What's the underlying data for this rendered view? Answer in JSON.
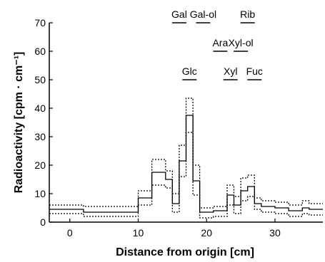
{
  "chart_data": {
    "type": "line",
    "xlabel": "Distance from origin [cm]",
    "ylabel": "Radioactivity [cpm · cm⁻¹]",
    "xlim": [
      -3,
      37
    ],
    "ylim": [
      0,
      70
    ],
    "xticks": [
      0,
      10,
      20,
      30
    ],
    "yticks": [
      0,
      10,
      20,
      30,
      40,
      50,
      60,
      70
    ],
    "grid": false,
    "series": [
      {
        "style": "solid",
        "x": [
          -3,
          2,
          2,
          10,
          10,
          12,
          12,
          14,
          14,
          15,
          15,
          16,
          16,
          17,
          17,
          18,
          18,
          19,
          19,
          21,
          21,
          23,
          23,
          24,
          24,
          25,
          25,
          26,
          26,
          27,
          27,
          28,
          28,
          30,
          30,
          32,
          32,
          34,
          34,
          35,
          35,
          37
        ],
        "y": [
          4.5,
          4.5,
          3.5,
          3.5,
          8.5,
          8.5,
          17.5,
          17.5,
          15.0,
          15.0,
          6.5,
          6.5,
          21.5,
          21.5,
          37.5,
          37.5,
          14.5,
          14.5,
          3.5,
          3.5,
          4.0,
          4.0,
          9.5,
          9.5,
          6.0,
          6.0,
          11.0,
          11.0,
          12.5,
          12.5,
          6.5,
          6.5,
          5.5,
          5.5,
          5.0,
          5.0,
          4.0,
          4.0,
          5.0,
          5.0,
          4.5,
          4.5
        ]
      },
      {
        "style": "dotted",
        "x": [
          -3,
          2,
          2,
          10,
          10,
          12,
          12,
          14,
          14,
          15,
          15,
          16,
          16,
          17,
          17,
          18,
          18,
          19,
          19,
          21,
          21,
          23,
          23,
          24,
          24,
          25,
          25,
          26,
          26,
          27,
          27,
          28,
          28,
          30,
          30,
          32,
          32,
          34,
          34,
          35,
          35,
          37
        ],
        "y": [
          6.0,
          6.0,
          5.5,
          5.5,
          11.0,
          11.0,
          22.0,
          22.0,
          18.0,
          18.0,
          10.0,
          10.0,
          27.0,
          27.0,
          43.5,
          43.5,
          20.0,
          20.0,
          5.0,
          5.0,
          5.5,
          5.5,
          13.0,
          13.0,
          9.0,
          9.0,
          15.5,
          15.5,
          16.5,
          16.5,
          8.5,
          8.5,
          7.5,
          7.5,
          7.0,
          7.0,
          6.0,
          6.0,
          7.5,
          7.5,
          6.5,
          6.5
        ]
      },
      {
        "style": "dotted",
        "x": [
          -3,
          2,
          2,
          10,
          10,
          12,
          12,
          14,
          14,
          15,
          15,
          16,
          16,
          17,
          17,
          18,
          18,
          19,
          19,
          21,
          21,
          23,
          23,
          24,
          24,
          25,
          25,
          26,
          26,
          27,
          27,
          28,
          28,
          30,
          30,
          32,
          32,
          34,
          34,
          35,
          35,
          37
        ],
        "y": [
          3.0,
          3.0,
          2.0,
          2.0,
          6.0,
          6.0,
          13.0,
          13.0,
          12.0,
          12.0,
          3.5,
          3.5,
          16.0,
          16.0,
          31.5,
          31.5,
          9.5,
          9.5,
          1.5,
          1.5,
          2.0,
          2.0,
          6.0,
          6.0,
          3.0,
          3.0,
          7.5,
          7.5,
          9.0,
          9.0,
          4.5,
          4.5,
          3.5,
          3.5,
          3.0,
          3.0,
          2.0,
          2.0,
          3.0,
          3.0,
          2.5,
          2.5
        ]
      }
    ],
    "annotations": [
      {
        "label": "Gal",
        "x": 16,
        "y": 70
      },
      {
        "label": "Gal-ol",
        "x": 19.5,
        "y": 70
      },
      {
        "label": "Rib",
        "x": 26,
        "y": 70
      },
      {
        "label": "Ara",
        "x": 22,
        "y": 60
      },
      {
        "label": "Xyl-ol",
        "x": 25,
        "y": 60
      },
      {
        "label": "Glc",
        "x": 17.5,
        "y": 50
      },
      {
        "label": "Xyl",
        "x": 23.5,
        "y": 50
      },
      {
        "label": "Fuc",
        "x": 27,
        "y": 50
      }
    ]
  }
}
